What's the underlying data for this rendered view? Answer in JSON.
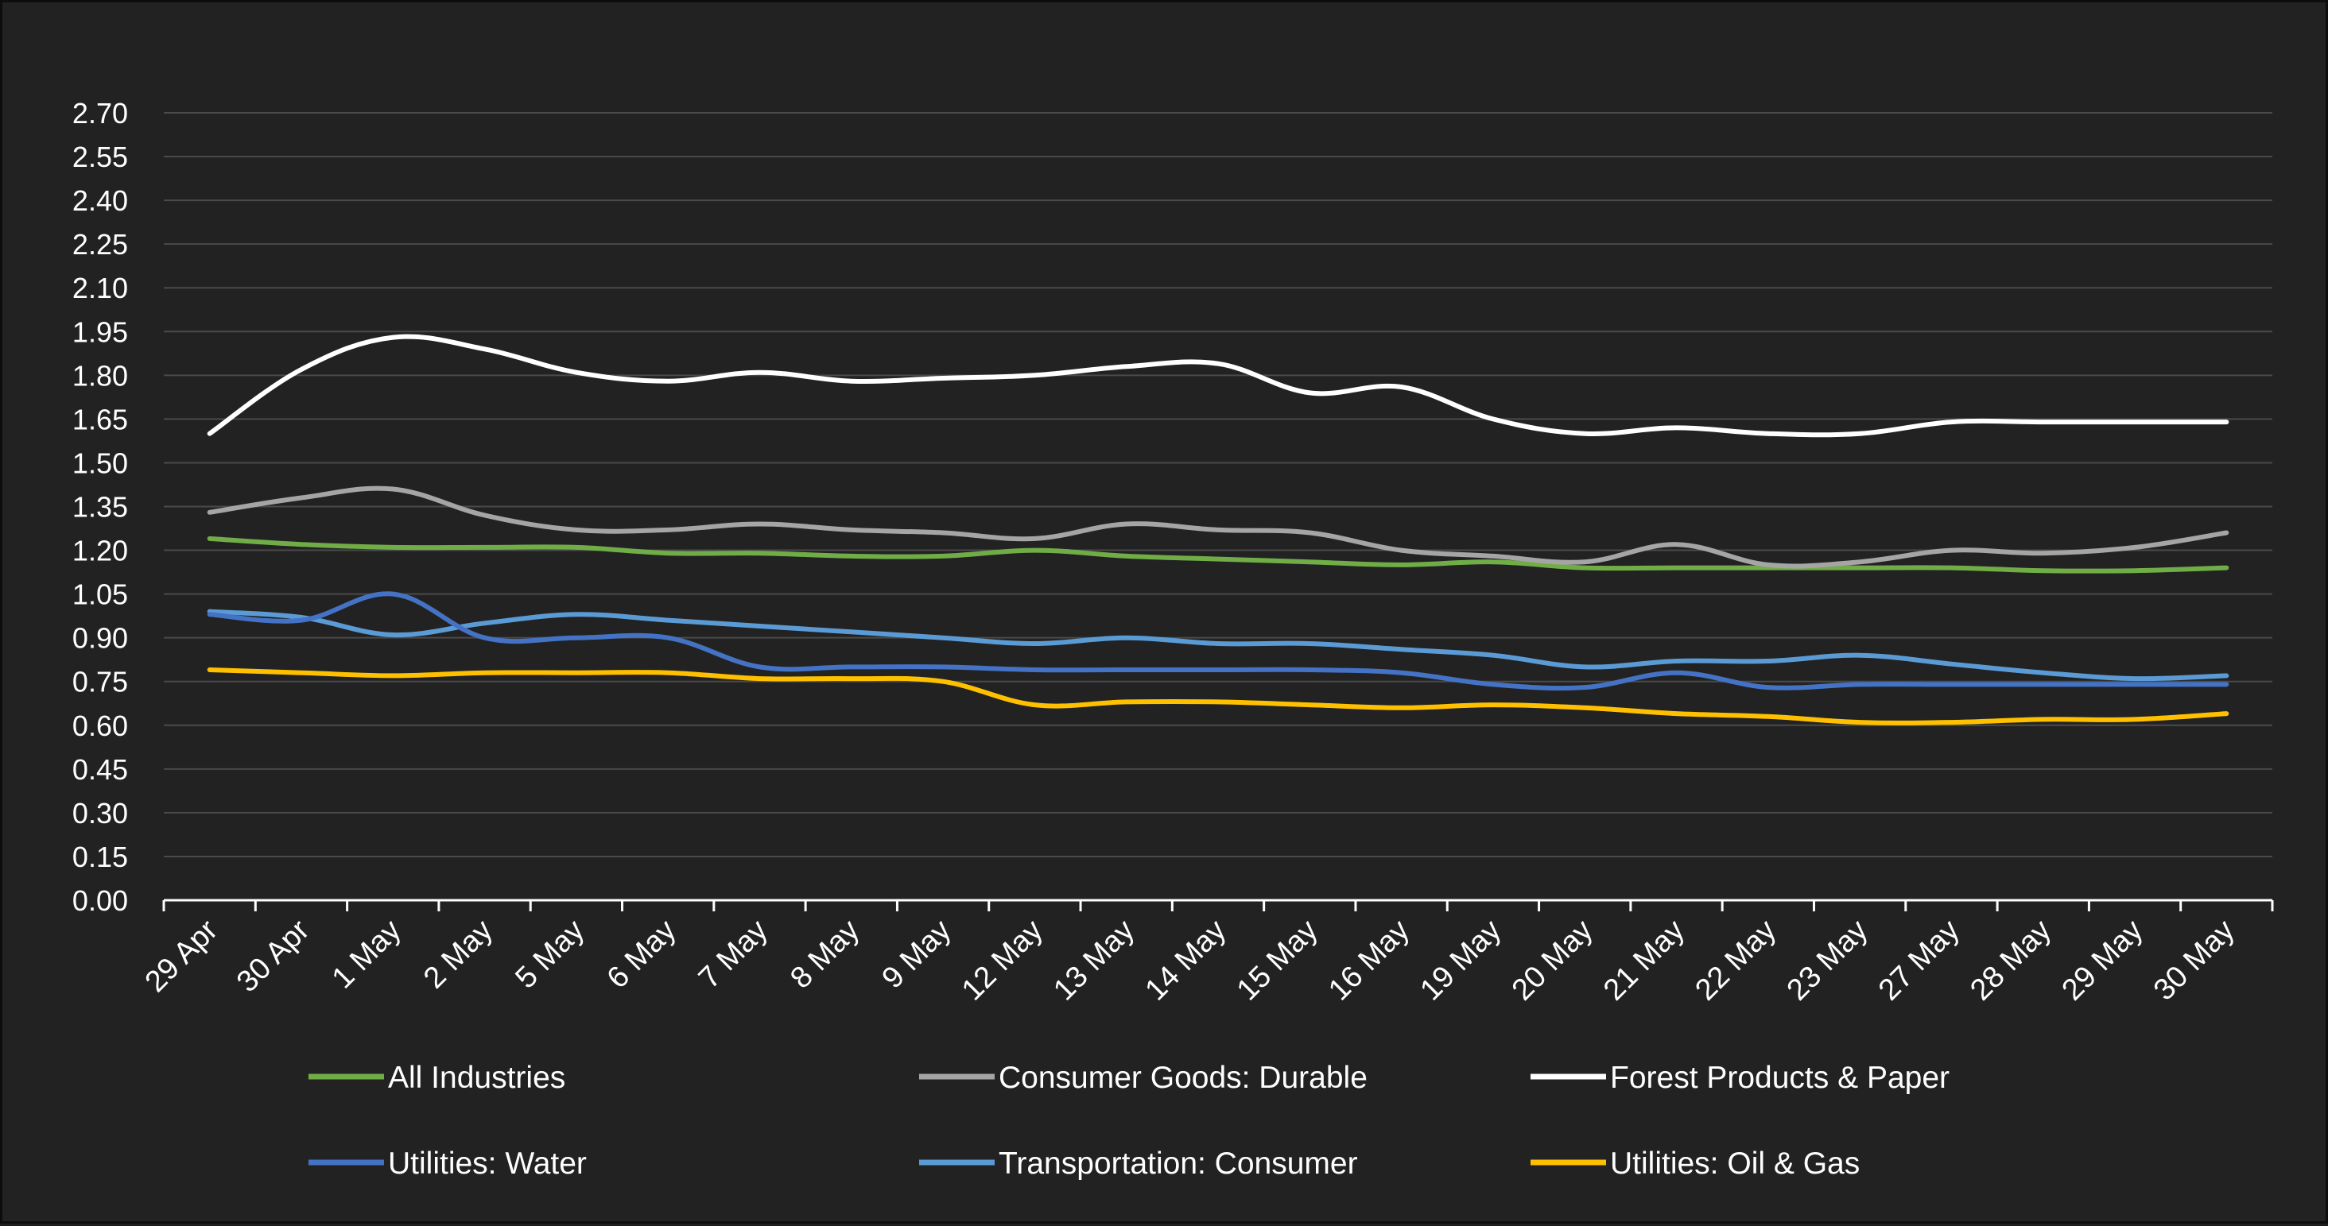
{
  "chart_data": {
    "type": "line",
    "title": "",
    "xlabel": "",
    "ylabel": "",
    "ylim": [
      0,
      2.7
    ],
    "y_ticks": [
      "0.00",
      "0.15",
      "0.30",
      "0.45",
      "0.60",
      "0.75",
      "0.90",
      "1.05",
      "1.20",
      "1.35",
      "1.50",
      "1.65",
      "1.80",
      "1.95",
      "2.10",
      "2.25",
      "2.40",
      "2.55",
      "2.70"
    ],
    "grid": "horizontal",
    "legend_position": "bottom",
    "background": "#222222",
    "categories": [
      "29 Apr",
      "30 Apr",
      "1 May",
      "2 May",
      "5 May",
      "6 May",
      "7 May",
      "8 May",
      "9 May",
      "12 May",
      "13 May",
      "14 May",
      "15 May",
      "16 May",
      "19 May",
      "20 May",
      "21 May",
      "22 May",
      "23 May",
      "27 May",
      "28 May",
      "29 May",
      "30 May"
    ],
    "series": [
      {
        "name": "All Industries",
        "color": "#70ad47",
        "values": [
          1.24,
          1.22,
          1.21,
          1.21,
          1.21,
          1.19,
          1.19,
          1.18,
          1.18,
          1.2,
          1.18,
          1.17,
          1.16,
          1.15,
          1.16,
          1.14,
          1.14,
          1.14,
          1.14,
          1.14,
          1.13,
          1.13,
          1.14
        ]
      },
      {
        "name": "Consumer Goods: Durable",
        "color": "#a5a5a5",
        "values": [
          1.33,
          1.38,
          1.41,
          1.32,
          1.27,
          1.27,
          1.29,
          1.27,
          1.26,
          1.24,
          1.29,
          1.27,
          1.26,
          1.2,
          1.18,
          1.16,
          1.22,
          1.15,
          1.16,
          1.2,
          1.19,
          1.21,
          1.26
        ]
      },
      {
        "name": "Forest Products & Paper",
        "color": "#ffffff",
        "values": [
          1.6,
          1.82,
          1.93,
          1.89,
          1.81,
          1.78,
          1.81,
          1.78,
          1.79,
          1.8,
          1.83,
          1.84,
          1.74,
          1.76,
          1.65,
          1.6,
          1.62,
          1.6,
          1.6,
          1.64,
          1.64,
          1.64,
          1.64
        ]
      },
      {
        "name": "Utilities: Water",
        "color": "#4472c4",
        "values": [
          0.98,
          0.96,
          1.05,
          0.9,
          0.9,
          0.9,
          0.8,
          0.8,
          0.8,
          0.79,
          0.79,
          0.79,
          0.79,
          0.78,
          0.74,
          0.73,
          0.78,
          0.73,
          0.74,
          0.74,
          0.74,
          0.74,
          0.74
        ]
      },
      {
        "name": "Transportation: Consumer",
        "color": "#5b9bd5",
        "values": [
          0.99,
          0.97,
          0.91,
          0.95,
          0.98,
          0.96,
          0.94,
          0.92,
          0.9,
          0.88,
          0.9,
          0.88,
          0.88,
          0.86,
          0.84,
          0.8,
          0.82,
          0.82,
          0.84,
          0.81,
          0.78,
          0.76,
          0.77
        ]
      },
      {
        "name": "Utilities: Oil & Gas",
        "color": "#ffc000",
        "values": [
          0.79,
          0.78,
          0.77,
          0.78,
          0.78,
          0.78,
          0.76,
          0.76,
          0.75,
          0.67,
          0.68,
          0.68,
          0.67,
          0.66,
          0.67,
          0.66,
          0.64,
          0.63,
          0.61,
          0.61,
          0.62,
          0.62,
          0.64
        ]
      }
    ]
  }
}
